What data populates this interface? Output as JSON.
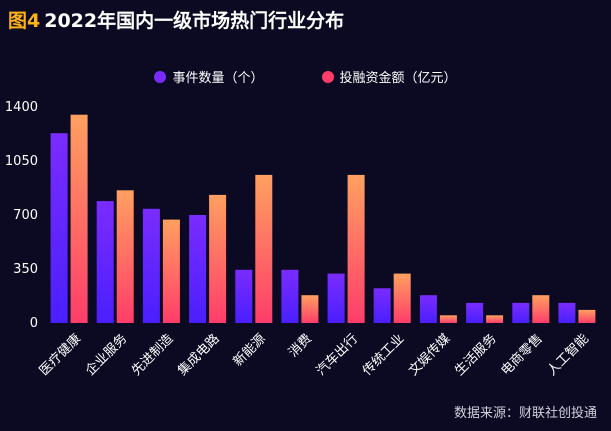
{
  "header": {
    "fig_label": "图4",
    "title": "2022年国内一级市场热门行业分布"
  },
  "source": "数据来源：财联社创投通",
  "colors": {
    "background": "#0b0a22",
    "series1_top": "#7a2cff",
    "series1_bottom": "#4a1fff",
    "series2_top": "#ffa060",
    "series2_bottom": "#ff3d6a",
    "fig_label": "#ffb21a"
  },
  "chart_data": {
    "type": "bar",
    "categories": [
      "医疗健康",
      "企业服务",
      "先进制造",
      "集成电路",
      "新能源",
      "消费",
      "汽车出行",
      "传统工业",
      "文娱传媒",
      "生活服务",
      "电商零售",
      "人工智能"
    ],
    "series": [
      {
        "name": "事件数量（个）",
        "values": [
          1230,
          790,
          740,
          700,
          345,
          345,
          320,
          225,
          180,
          130,
          130,
          130
        ]
      },
      {
        "name": "投融资金额（亿元）",
        "values": [
          1350,
          860,
          670,
          830,
          960,
          180,
          960,
          320,
          50,
          50,
          180,
          85
        ]
      }
    ],
    "yticks": [
      0,
      350,
      700,
      1050,
      1400
    ],
    "ylim": [
      0,
      1400
    ],
    "legend_position": "top-center",
    "grid": false
  }
}
